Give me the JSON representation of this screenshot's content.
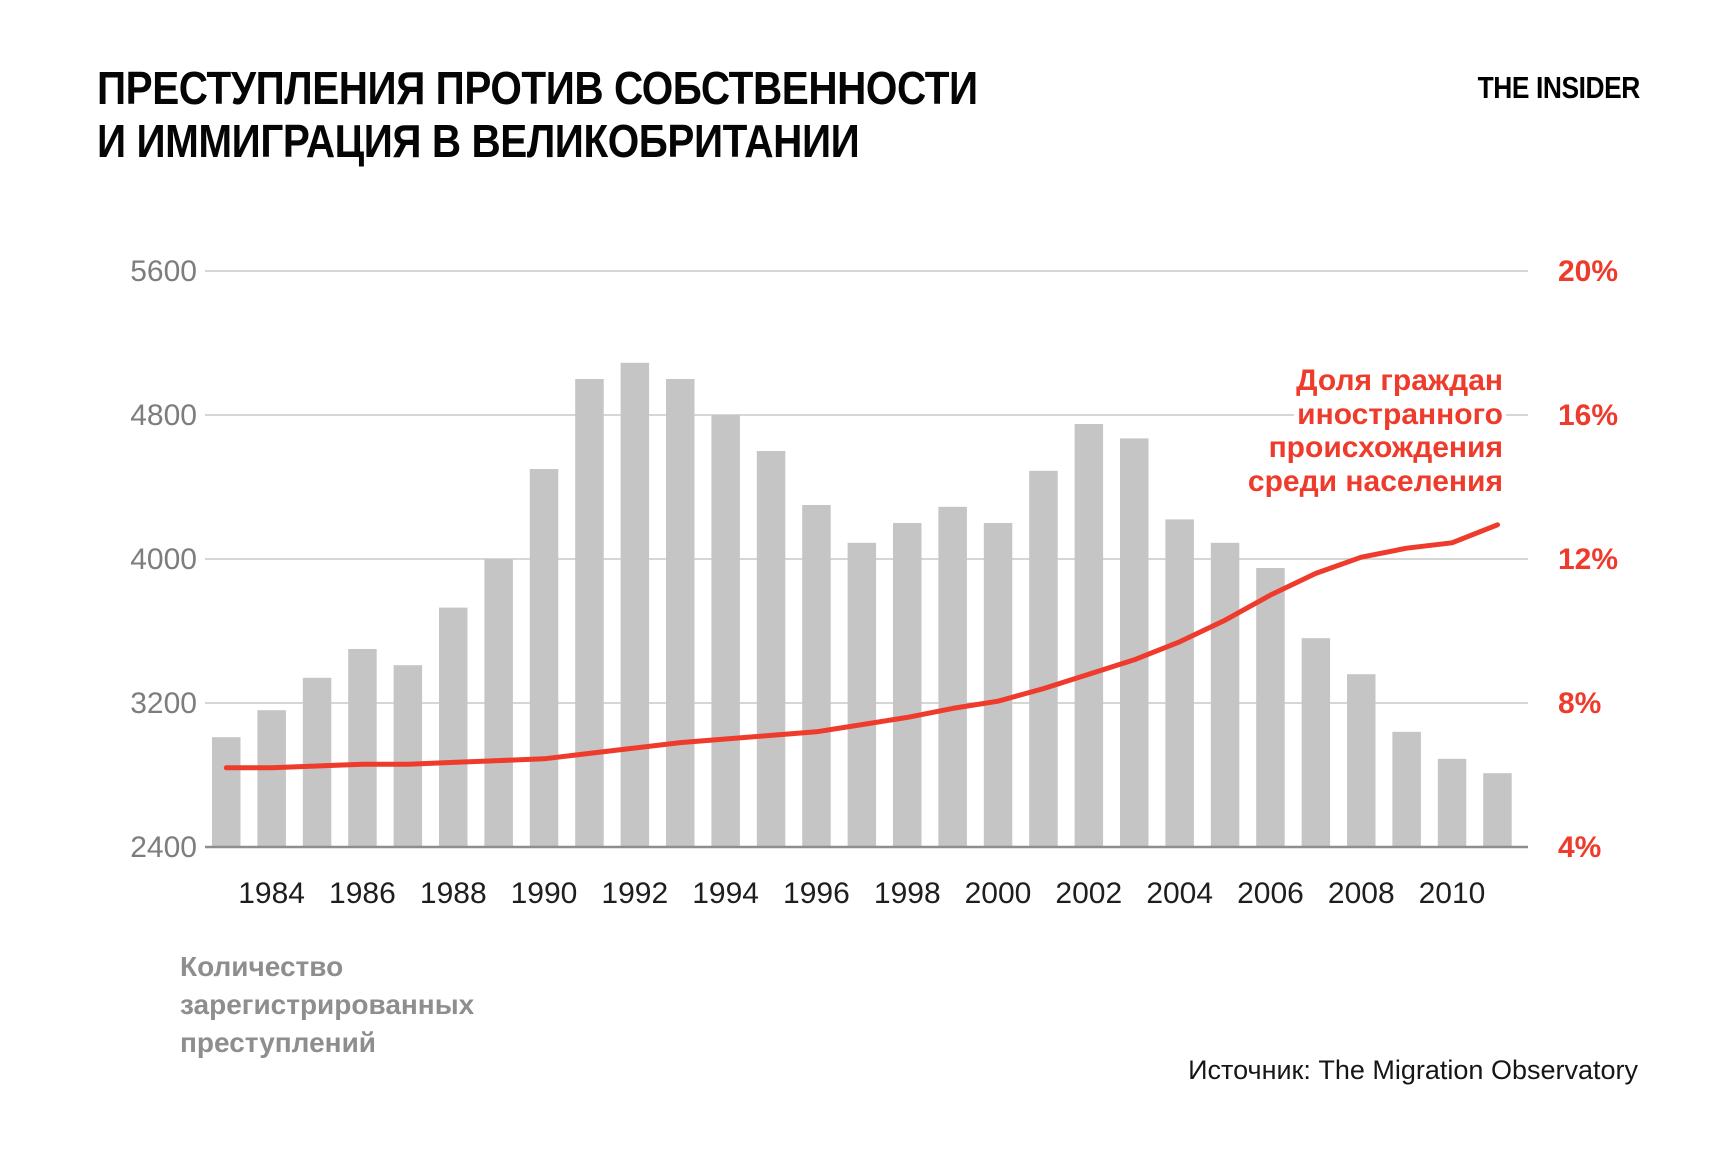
{
  "header": {
    "title_line1": "ПРЕСТУПЛЕНИЯ ПРОТИВ СОБСТВЕННОСТИ",
    "title_line2": "И ИММИГРАЦИЯ В ВЕЛИКОБРИТАНИИ",
    "logo": "THE INSIDER"
  },
  "chart_data": {
    "type": "bar",
    "title": "Преступления против собственности и иммиграция в Великобритании",
    "categories": [
      1983,
      1984,
      1985,
      1986,
      1987,
      1988,
      1989,
      1990,
      1991,
      1992,
      1993,
      1994,
      1995,
      1996,
      1997,
      1998,
      1999,
      2000,
      2001,
      2002,
      2003,
      2004,
      2005,
      2006,
      2007,
      2008,
      2009,
      2010,
      2011
    ],
    "series": [
      {
        "name": "Количество зарегистрированных преступлений",
        "type": "bar",
        "values": [
          3010,
          3160,
          3340,
          3500,
          3410,
          3730,
          4000,
          4500,
          5000,
          5090,
          5000,
          4800,
          4600,
          4300,
          4090,
          4200,
          4290,
          4200,
          4490,
          4750,
          4670,
          4220,
          4090,
          3950,
          3560,
          3360,
          3040,
          2890,
          2810
        ]
      },
      {
        "name": "Доля граждан иностранного происхождения среди населения",
        "type": "line",
        "unit": "%",
        "values": [
          6.2,
          6.2,
          6.25,
          6.3,
          6.3,
          6.35,
          6.4,
          6.45,
          6.6,
          6.75,
          6.9,
          7.0,
          7.1,
          7.2,
          7.4,
          7.6,
          7.85,
          8.05,
          8.4,
          8.8,
          9.2,
          9.7,
          10.3,
          11.0,
          11.6,
          12.05,
          12.3,
          12.45,
          12.95
        ]
      }
    ],
    "left_axis": {
      "range": [
        2400,
        5600
      ],
      "ticks": [
        5600,
        4800,
        4000,
        3200,
        2400
      ]
    },
    "right_axis": {
      "range": [
        4,
        20
      ],
      "ticks": [
        {
          "label": "20%",
          "value": 20
        },
        {
          "label": "16%",
          "value": 16
        },
        {
          "label": "12%",
          "value": 12
        },
        {
          "label": "8%",
          "value": 8
        },
        {
          "label": "4%",
          "value": 4
        }
      ]
    },
    "x_tick_labels": [
      "1984",
      "1986",
      "1988",
      "1990",
      "1992",
      "1994",
      "1996",
      "1998",
      "2000",
      "2002",
      "2004",
      "2006",
      "2008",
      "2010"
    ],
    "grid": true,
    "legend_position": "inside-right"
  },
  "legend": {
    "lines": [
      "Доля граждан",
      "иностранного",
      "происхождения",
      "среди населения"
    ]
  },
  "caption": {
    "lines": [
      "Количество",
      "зарегистрированных",
      "преступлений"
    ]
  },
  "source": "Источник: The Migration Observatory",
  "colors": {
    "bar": "#c5c5c5",
    "line": "#ee3b2b",
    "grid": "#c9c9c9",
    "axis": "#8e8e8e",
    "left_tick": "#7d7d7d",
    "right_tick": "#ee3b2b",
    "x_tick": "#1e1e1e",
    "caption": "#8e8e8e",
    "legend_text": "#ee3b2b"
  }
}
